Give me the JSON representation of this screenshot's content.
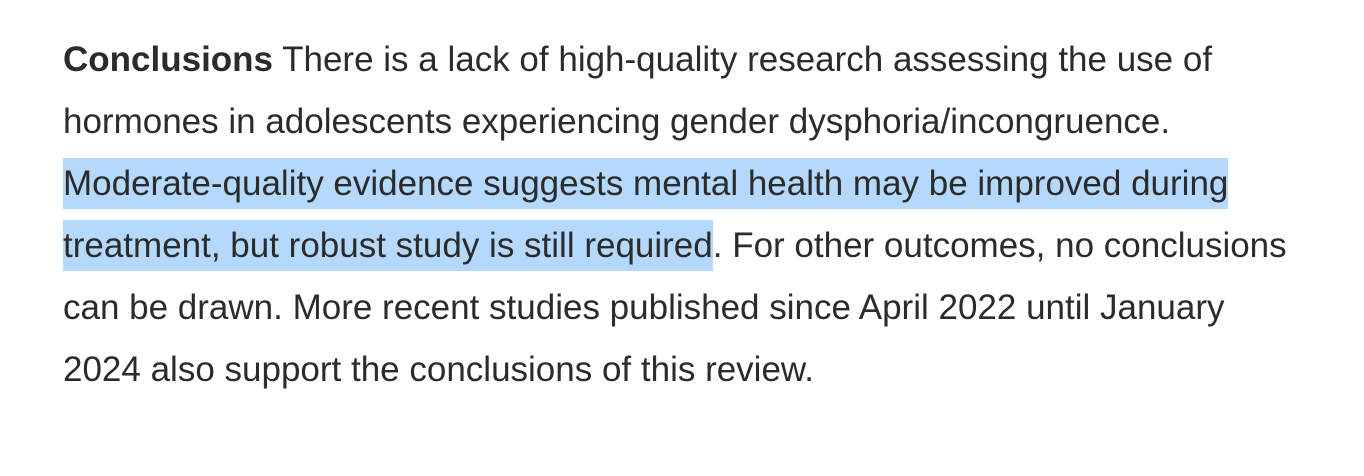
{
  "paragraph": {
    "label": "Conclusions",
    "text_before": "There is a lack of high-quality research assessing the use of hormones in adolescents experiencing gender dysphoria/incongruence.",
    "highlighted": "Moderate-quality evidence suggests mental health may be improved during treatment, but robust study is still required",
    "text_after": ". For other outcomes, no conclusions can be drawn. More recent studies published since April 2022 until January 2024 also support the conclusions of this review."
  }
}
